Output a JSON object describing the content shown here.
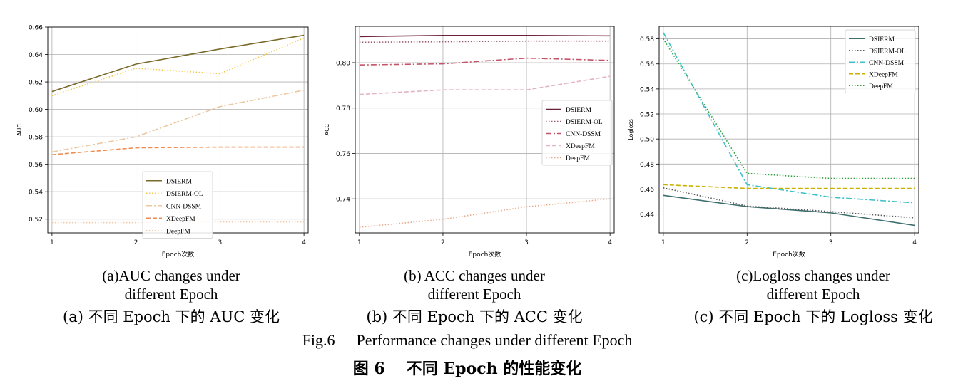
{
  "chart_data": [
    {
      "type": "line",
      "title": "",
      "xlabel": "Epoch次数",
      "ylabel": "AUC",
      "x": [
        1,
        2,
        3,
        4
      ],
      "xticks": [
        "1",
        "2",
        "3",
        "4"
      ],
      "xlim": [
        0.95,
        4.05
      ],
      "ylim": [
        0.51,
        0.66
      ],
      "yticks": [
        "0.52",
        "0.54",
        "0.56",
        "0.58",
        "0.60",
        "0.62",
        "0.64",
        "0.66"
      ],
      "grid": true,
      "legend_position": "bottom-center",
      "series": [
        {
          "name": "DSIERM",
          "values": [
            0.613,
            0.633,
            0.644,
            0.654
          ],
          "color": "#7a6a2a",
          "style": "solid"
        },
        {
          "name": "DSIERM-OL",
          "values": [
            0.61,
            0.63,
            0.626,
            0.652
          ],
          "color": "#f2c94c",
          "style": "dotted"
        },
        {
          "name": "CNN-DSSM",
          "values": [
            0.569,
            0.58,
            0.602,
            0.614
          ],
          "color": "#e9c8a2",
          "style": "dashdot"
        },
        {
          "name": "XDeepFM",
          "values": [
            0.567,
            0.572,
            0.5725,
            0.5725
          ],
          "color": "#ef8c4f",
          "style": "dashed"
        },
        {
          "name": "DeepFM",
          "values": [
            0.5175,
            0.5175,
            0.518,
            0.518
          ],
          "color": "#f4c7a8",
          "style": "dotted"
        }
      ]
    },
    {
      "type": "line",
      "title": "",
      "xlabel": "Epoch次数",
      "ylabel": "ACC",
      "x": [
        1,
        2,
        3,
        4
      ],
      "xticks": [
        "1",
        "2",
        "3",
        "4"
      ],
      "xlim": [
        0.95,
        4.05
      ],
      "ylim": [
        0.725,
        0.816
      ],
      "yticks": [
        "0.74",
        "0.76",
        "0.78",
        "0.80"
      ],
      "grid": true,
      "legend_position": "center-right",
      "series": [
        {
          "name": "DSIERM",
          "values": [
            0.8115,
            0.812,
            0.812,
            0.8118
          ],
          "color": "#6b1f3a",
          "style": "solid"
        },
        {
          "name": "DSIERM-OL",
          "values": [
            0.809,
            0.8092,
            0.8095,
            0.8095
          ],
          "color": "#9c5a74",
          "style": "dotted"
        },
        {
          "name": "CNN-DSSM",
          "values": [
            0.799,
            0.7995,
            0.802,
            0.801
          ],
          "color": "#c4546a",
          "style": "dashdot"
        },
        {
          "name": "XDeepFM",
          "values": [
            0.786,
            0.788,
            0.788,
            0.794
          ],
          "color": "#e2b4c0",
          "style": "dashed"
        },
        {
          "name": "DeepFM",
          "values": [
            0.7275,
            0.731,
            0.7365,
            0.74
          ],
          "color": "#e8a98a",
          "style": "dotted"
        }
      ]
    },
    {
      "type": "line",
      "title": "",
      "xlabel": "Epoch次数",
      "ylabel": "Logloss",
      "x": [
        1,
        2,
        3,
        4
      ],
      "xticks": [
        "1",
        "2",
        "3",
        "4"
      ],
      "xlim": [
        0.95,
        4.05
      ],
      "ylim": [
        0.425,
        0.59
      ],
      "yticks": [
        "0.44",
        "0.46",
        "0.48",
        "0.50",
        "0.52",
        "0.54",
        "0.56",
        "0.58"
      ],
      "grid": true,
      "legend_position": "top-right",
      "series": [
        {
          "name": "DSIERM",
          "values": [
            0.455,
            0.446,
            0.441,
            0.431
          ],
          "color": "#3e6e6e",
          "style": "solid"
        },
        {
          "name": "DSIERM-OL",
          "values": [
            0.461,
            0.4465,
            0.442,
            0.437
          ],
          "color": "#5a5a5a",
          "style": "dotted"
        },
        {
          "name": "CNN-DSSM",
          "values": [
            0.585,
            0.4635,
            0.4535,
            0.449
          ],
          "color": "#3fc1c9",
          "style": "dashdot"
        },
        {
          "name": "XDeepFM",
          "values": [
            0.4635,
            0.4605,
            0.4605,
            0.4605
          ],
          "color": "#c9b100",
          "style": "dashed"
        },
        {
          "name": "DeepFM",
          "values": [
            0.58,
            0.4725,
            0.4685,
            0.4685
          ],
          "color": "#2e9d3a",
          "style": "dotted"
        }
      ]
    }
  ],
  "captions": [
    {
      "en_line1": "(a)AUC changes under",
      "en_line2": "different Epoch",
      "cn": "(a)  不同 Epoch 下的 AUC 变化"
    },
    {
      "en_line1": "(b) ACC changes under",
      "en_line2": "different Epoch",
      "cn": "(b)  不同 Epoch 下的 ACC 变化"
    },
    {
      "en_line1": "(c)Logloss changes under",
      "en_line2": "different Epoch",
      "cn": "(c)  不同 Epoch 下的 Logloss 变化"
    }
  ],
  "figure_caption": {
    "en_tag": "Fig.6",
    "en_text": "Performance changes under different Epoch",
    "cn_tag": "图 6",
    "cn_text": "不同 Epoch 的性能变化"
  }
}
